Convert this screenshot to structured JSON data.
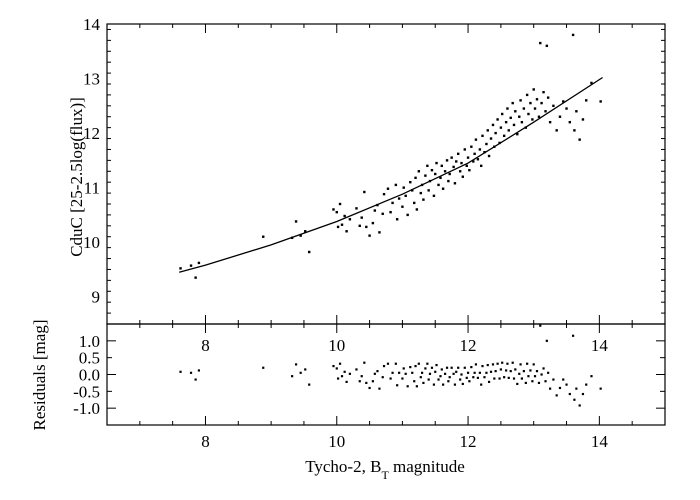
{
  "chart_data": [
    {
      "panel": "main",
      "type": "scatter",
      "xlim": [
        6.5,
        15.0
      ],
      "ylim": [
        8.5,
        14.0
      ],
      "yticks": [
        9,
        10,
        11,
        12,
        13,
        14
      ],
      "xticks": [
        8,
        10,
        12,
        14
      ],
      "ylabel": "CduC [25-2.5log(flux)]",
      "fit_line": {
        "x": [
          7.6,
          8.0,
          9.0,
          10.0,
          11.0,
          12.0,
          13.0,
          14.05
        ],
        "y": [
          9.45,
          9.58,
          9.95,
          10.38,
          10.88,
          11.45,
          12.2,
          13.02
        ]
      },
      "points": [
        [
          7.62,
          9.52
        ],
        [
          7.78,
          9.57
        ],
        [
          7.85,
          9.35
        ],
        [
          7.9,
          9.62
        ],
        [
          8.88,
          10.1
        ],
        [
          9.32,
          10.08
        ],
        [
          9.38,
          10.38
        ],
        [
          9.45,
          10.12
        ],
        [
          9.52,
          10.2
        ],
        [
          9.58,
          9.82
        ],
        [
          9.95,
          10.6
        ],
        [
          10.0,
          10.55
        ],
        [
          10.02,
          10.28
        ],
        [
          10.05,
          10.7
        ],
        [
          10.08,
          10.32
        ],
        [
          10.12,
          10.48
        ],
        [
          10.15,
          10.2
        ],
        [
          10.2,
          10.42
        ],
        [
          10.3,
          10.62
        ],
        [
          10.35,
          10.3
        ],
        [
          10.38,
          10.45
        ],
        [
          10.42,
          10.92
        ],
        [
          10.45,
          10.28
        ],
        [
          10.5,
          10.12
        ],
        [
          10.55,
          10.35
        ],
        [
          10.58,
          10.58
        ],
        [
          10.62,
          10.68
        ],
        [
          10.65,
          10.18
        ],
        [
          10.7,
          10.52
        ],
        [
          10.72,
          10.88
        ],
        [
          10.78,
          10.98
        ],
        [
          10.82,
          10.55
        ],
        [
          10.85,
          10.72
        ],
        [
          10.9,
          11.05
        ],
        [
          10.92,
          10.42
        ],
        [
          10.95,
          10.8
        ],
        [
          11.0,
          10.65
        ],
        [
          11.02,
          11.0
        ],
        [
          11.05,
          10.85
        ],
        [
          11.08,
          10.5
        ],
        [
          11.12,
          11.1
        ],
        [
          11.15,
          10.95
        ],
        [
          11.18,
          10.72
        ],
        [
          11.2,
          11.18
        ],
        [
          11.22,
          10.6
        ],
        [
          11.25,
          11.3
        ],
        [
          11.28,
          10.9
        ],
        [
          11.3,
          11.05
        ],
        [
          11.32,
          10.78
        ],
        [
          11.35,
          11.22
        ],
        [
          11.38,
          11.4
        ],
        [
          11.4,
          10.95
        ],
        [
          11.42,
          11.12
        ],
        [
          11.45,
          11.32
        ],
        [
          11.48,
          10.85
        ],
        [
          11.5,
          11.25
        ],
        [
          11.52,
          11.45
        ],
        [
          11.55,
          11.05
        ],
        [
          11.58,
          11.18
        ],
        [
          11.6,
          11.4
        ],
        [
          11.62,
          10.98
        ],
        [
          11.65,
          11.3
        ],
        [
          11.68,
          11.5
        ],
        [
          11.7,
          11.12
        ],
        [
          11.72,
          11.25
        ],
        [
          11.75,
          11.55
        ],
        [
          11.78,
          11.38
        ],
        [
          11.8,
          11.08
        ],
        [
          11.82,
          11.48
        ],
        [
          11.85,
          11.62
        ],
        [
          11.88,
          11.3
        ],
        [
          11.9,
          11.45
        ],
        [
          11.92,
          11.2
        ],
        [
          11.95,
          11.7
        ],
        [
          11.98,
          11.4
        ],
        [
          12.0,
          11.55
        ],
        [
          12.02,
          11.32
        ],
        [
          12.05,
          11.75
        ],
        [
          12.08,
          11.48
        ],
        [
          12.1,
          11.62
        ],
        [
          12.12,
          11.88
        ],
        [
          12.15,
          11.52
        ],
        [
          12.18,
          11.7
        ],
        [
          12.2,
          11.4
        ],
        [
          12.22,
          11.95
        ],
        [
          12.25,
          11.65
        ],
        [
          12.28,
          11.8
        ],
        [
          12.3,
          12.05
        ],
        [
          12.32,
          11.58
        ],
        [
          12.35,
          11.9
        ],
        [
          12.38,
          12.15
        ],
        [
          12.4,
          11.75
        ],
        [
          12.42,
          12.0
        ],
        [
          12.45,
          12.25
        ],
        [
          12.48,
          11.82
        ],
        [
          12.5,
          12.1
        ],
        [
          12.52,
          12.35
        ],
        [
          12.55,
          11.95
        ],
        [
          12.58,
          12.2
        ],
        [
          12.6,
          12.45
        ],
        [
          12.62,
          12.05
        ],
        [
          12.65,
          12.28
        ],
        [
          12.68,
          12.55
        ],
        [
          12.7,
          12.15
        ],
        [
          12.72,
          12.4
        ],
        [
          12.75,
          11.98
        ],
        [
          12.78,
          12.3
        ],
        [
          12.8,
          12.6
        ],
        [
          12.82,
          12.2
        ],
        [
          12.85,
          12.45
        ],
        [
          12.88,
          12.1
        ],
        [
          12.9,
          12.7
        ],
        [
          12.92,
          12.35
        ],
        [
          12.95,
          12.55
        ],
        [
          12.98,
          12.25
        ],
        [
          13.0,
          12.8
        ],
        [
          13.02,
          12.45
        ],
        [
          13.05,
          12.62
        ],
        [
          13.08,
          12.3
        ],
        [
          13.1,
          13.65
        ],
        [
          13.12,
          12.55
        ],
        [
          13.15,
          12.75
        ],
        [
          13.18,
          12.4
        ],
        [
          13.2,
          13.6
        ],
        [
          13.22,
          12.65
        ],
        [
          13.25,
          12.2
        ],
        [
          13.3,
          12.5
        ],
        [
          13.35,
          12.05
        ],
        [
          13.4,
          12.3
        ],
        [
          13.45,
          12.58
        ],
        [
          13.5,
          12.45
        ],
        [
          13.55,
          12.2
        ],
        [
          13.6,
          13.8
        ],
        [
          13.62,
          12.05
        ],
        [
          13.65,
          12.4
        ],
        [
          13.7,
          11.88
        ],
        [
          13.75,
          12.25
        ],
        [
          13.8,
          12.6
        ],
        [
          13.88,
          12.92
        ],
        [
          14.02,
          12.58
        ]
      ]
    },
    {
      "panel": "residuals",
      "type": "scatter",
      "xlim": [
        6.5,
        15.0
      ],
      "ylim": [
        -1.5,
        1.5
      ],
      "yticks": [
        -1.0,
        -0.5,
        0.0,
        0.5,
        1.0
      ],
      "ytick_labels": [
        "-1.0",
        "-0.5",
        "0.0",
        "0.5",
        "1.0"
      ],
      "xticks": [
        8,
        10,
        12,
        14
      ],
      "ylabel": "Residuals [mag]",
      "xlabel_main": "Tycho-2, B",
      "xlabel_sub": "T",
      "xlabel_tail": " magnitude",
      "points": [
        [
          7.62,
          0.08
        ],
        [
          7.78,
          0.05
        ],
        [
          7.85,
          -0.15
        ],
        [
          7.9,
          0.12
        ],
        [
          8.88,
          0.2
        ],
        [
          9.32,
          -0.05
        ],
        [
          9.38,
          0.3
        ],
        [
          9.45,
          0.05
        ],
        [
          9.52,
          0.15
        ],
        [
          9.58,
          -0.3
        ],
        [
          9.95,
          0.25
        ],
        [
          10.0,
          0.18
        ],
        [
          10.02,
          -0.12
        ],
        [
          10.05,
          0.32
        ],
        [
          10.08,
          -0.05
        ],
        [
          10.12,
          0.08
        ],
        [
          10.15,
          -0.22
        ],
        [
          10.2,
          0.02
        ],
        [
          10.3,
          0.15
        ],
        [
          10.35,
          -0.2
        ],
        [
          10.38,
          -0.05
        ],
        [
          10.42,
          0.35
        ],
        [
          10.45,
          -0.25
        ],
        [
          10.5,
          -0.4
        ],
        [
          10.55,
          -0.2
        ],
        [
          10.58,
          0.02
        ],
        [
          10.62,
          0.1
        ],
        [
          10.65,
          -0.42
        ],
        [
          10.7,
          -0.08
        ],
        [
          10.72,
          0.25
        ],
        [
          10.78,
          0.32
        ],
        [
          10.82,
          -0.12
        ],
        [
          10.85,
          0.05
        ],
        [
          10.9,
          0.32
        ],
        [
          10.92,
          -0.32
        ],
        [
          10.95,
          0.05
        ],
        [
          11.0,
          -0.12
        ],
        [
          11.02,
          0.18
        ],
        [
          11.05,
          0.02
        ],
        [
          11.08,
          -0.35
        ],
        [
          11.12,
          0.22
        ],
        [
          11.15,
          0.05
        ],
        [
          11.18,
          -0.2
        ],
        [
          11.2,
          0.25
        ],
        [
          11.22,
          -0.35
        ],
        [
          11.25,
          0.32
        ],
        [
          11.28,
          -0.08
        ],
        [
          11.3,
          0.05
        ],
        [
          11.32,
          -0.25
        ],
        [
          11.35,
          0.18
        ],
        [
          11.38,
          0.32
        ],
        [
          11.4,
          -0.15
        ],
        [
          11.42,
          0.02
        ],
        [
          11.45,
          0.2
        ],
        [
          11.48,
          -0.3
        ],
        [
          11.5,
          0.08
        ],
        [
          11.52,
          0.28
        ],
        [
          11.55,
          -0.15
        ],
        [
          11.58,
          -0.05
        ],
        [
          11.6,
          0.15
        ],
        [
          11.62,
          -0.3
        ],
        [
          11.65,
          0.02
        ],
        [
          11.68,
          0.2
        ],
        [
          11.7,
          -0.2
        ],
        [
          11.72,
          -0.08
        ],
        [
          11.75,
          0.2
        ],
        [
          11.78,
          0.02
        ],
        [
          11.8,
          -0.3
        ],
        [
          11.82,
          0.08
        ],
        [
          11.85,
          0.2
        ],
        [
          11.88,
          -0.15
        ],
        [
          11.9,
          0.0
        ],
        [
          11.92,
          -0.28
        ],
        [
          11.95,
          0.2
        ],
        [
          11.98,
          -0.1
        ],
        [
          12.0,
          0.05
        ],
        [
          12.02,
          -0.2
        ],
        [
          12.05,
          0.22
        ],
        [
          12.08,
          -0.08
        ],
        [
          12.1,
          0.05
        ],
        [
          12.12,
          0.3
        ],
        [
          12.15,
          -0.1
        ],
        [
          12.18,
          0.05
        ],
        [
          12.2,
          -0.3
        ],
        [
          12.22,
          0.25
        ],
        [
          12.25,
          -0.08
        ],
        [
          12.28,
          0.05
        ],
        [
          12.3,
          0.28
        ],
        [
          12.32,
          -0.22
        ],
        [
          12.35,
          0.08
        ],
        [
          12.38,
          0.3
        ],
        [
          12.4,
          -0.12
        ],
        [
          12.42,
          0.1
        ],
        [
          12.45,
          0.32
        ],
        [
          12.48,
          -0.12
        ],
        [
          12.5,
          0.15
        ],
        [
          12.52,
          0.35
        ],
        [
          12.55,
          -0.08
        ],
        [
          12.58,
          0.12
        ],
        [
          12.6,
          0.32
        ],
        [
          12.62,
          -0.1
        ],
        [
          12.65,
          0.1
        ],
        [
          12.68,
          0.35
        ],
        [
          12.7,
          -0.12
        ],
        [
          12.72,
          0.15
        ],
        [
          12.75,
          -0.28
        ],
        [
          12.78,
          0.02
        ],
        [
          12.8,
          0.3
        ],
        [
          12.82,
          -0.12
        ],
        [
          12.85,
          0.1
        ],
        [
          12.88,
          -0.25
        ],
        [
          12.9,
          0.32
        ],
        [
          12.92,
          -0.05
        ],
        [
          12.95,
          0.12
        ],
        [
          12.98,
          -0.2
        ],
        [
          13.0,
          0.3
        ],
        [
          13.02,
          -0.05
        ],
        [
          13.05,
          0.1
        ],
        [
          13.08,
          -0.25
        ],
        [
          13.1,
          1.45
        ],
        [
          13.12,
          0.0
        ],
        [
          13.15,
          0.18
        ],
        [
          13.18,
          -0.2
        ],
        [
          13.2,
          1.0
        ],
        [
          13.22,
          0.05
        ],
        [
          13.25,
          -0.42
        ],
        [
          13.3,
          -0.15
        ],
        [
          13.35,
          -0.62
        ],
        [
          13.4,
          -0.4
        ],
        [
          13.45,
          -0.15
        ],
        [
          13.5,
          -0.3
        ],
        [
          13.55,
          -0.58
        ],
        [
          13.6,
          1.15
        ],
        [
          13.62,
          -0.75
        ],
        [
          13.65,
          -0.42
        ],
        [
          13.7,
          -0.92
        ],
        [
          13.75,
          -0.58
        ],
        [
          13.8,
          -0.3
        ],
        [
          13.88,
          -0.05
        ],
        [
          14.02,
          -0.42
        ]
      ]
    }
  ]
}
